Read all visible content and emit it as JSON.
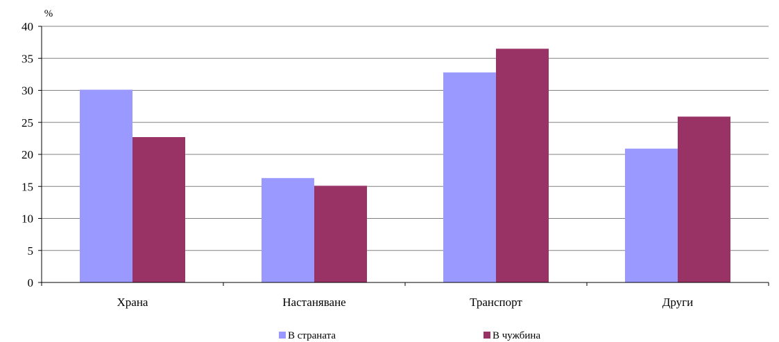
{
  "chart_data": {
    "type": "bar",
    "unit_label": "%",
    "categories": [
      "Храна",
      "Настаняване",
      "Транспорт",
      "Други"
    ],
    "series": [
      {
        "name": "В страната",
        "color": "#9999ff",
        "values": [
          30.1,
          16.3,
          32.8,
          20.9
        ]
      },
      {
        "name": "В чужбина",
        "color": "#993366",
        "values": [
          22.7,
          15.1,
          36.5,
          25.9
        ]
      }
    ],
    "ylim": [
      0,
      40
    ],
    "yticks": [
      0,
      5,
      10,
      15,
      20,
      25,
      30,
      35,
      40
    ],
    "grid": true,
    "legend_position": "bottom"
  }
}
